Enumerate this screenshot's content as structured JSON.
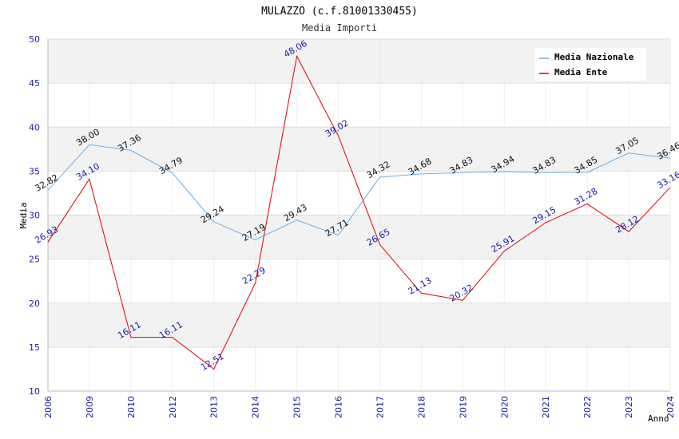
{
  "chart_data": {
    "type": "line",
    "title": "MULAZZO (c.f.81001330455)",
    "subtitle": "Media Importi",
    "xlabel": "Anno",
    "ylabel": "Media",
    "ylim": [
      10,
      50
    ],
    "yticks": [
      "10",
      "15",
      "20",
      "25",
      "30",
      "35",
      "40",
      "45",
      "50"
    ],
    "categories": [
      "2006",
      "2009",
      "2010",
      "2012",
      "2013",
      "2014",
      "2015",
      "2016",
      "2017",
      "2018",
      "2019",
      "2020",
      "2021",
      "2022",
      "2023",
      "2024"
    ],
    "grid": true,
    "legend_position": "top-right",
    "series": [
      {
        "name": "Media Nazionale",
        "color": "#6aaee8",
        "values": [
          32.82,
          38.0,
          37.36,
          34.79,
          29.24,
          27.19,
          29.43,
          27.71,
          34.32,
          34.68,
          34.83,
          34.94,
          34.83,
          34.85,
          37.05,
          36.46
        ],
        "labels": [
          "32.82",
          "38.00",
          "37.36",
          "34.79",
          "29.24",
          "27.19",
          "29.43",
          "27.71",
          "34.32",
          "34.68",
          "34.83",
          "34.94",
          "34.83",
          "34.85",
          "37.05",
          "36.46"
        ]
      },
      {
        "name": "Media Ente",
        "color": "#e00000",
        "values": [
          26.93,
          34.1,
          16.11,
          16.11,
          12.51,
          22.29,
          48.06,
          39.02,
          26.65,
          21.13,
          20.32,
          25.91,
          29.15,
          31.28,
          28.12,
          33.16
        ],
        "labels": [
          "26.93",
          "34.10",
          "16.11",
          "16.11",
          "12.51",
          "22.29",
          "48.06",
          "39.02",
          "26.65",
          "21.13",
          "20.32",
          "25.91",
          "29.15",
          "31.28",
          "28.12",
          "33.16"
        ]
      }
    ]
  }
}
